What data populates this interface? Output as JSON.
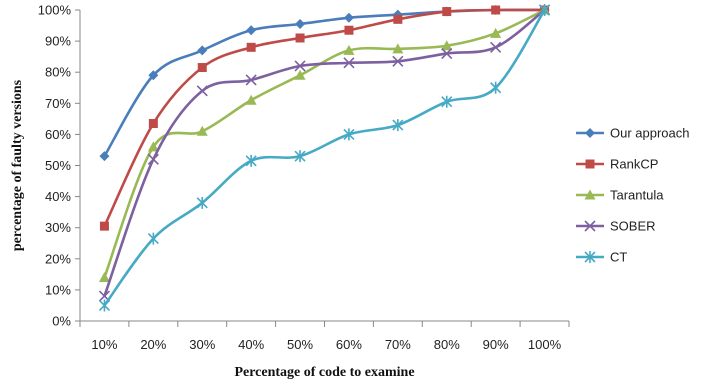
{
  "chart_data": {
    "type": "line",
    "title": "",
    "xlabel": "Percentage of code to examine",
    "ylabel": "percentage of faulty versions",
    "categories": [
      "10%",
      "20%",
      "30%",
      "40%",
      "50%",
      "60%",
      "70%",
      "80%",
      "90%",
      "100%"
    ],
    "y_ticks": [
      "0%",
      "10%",
      "20%",
      "30%",
      "40%",
      "50%",
      "60%",
      "70%",
      "80%",
      "90%",
      "100%"
    ],
    "ylim": [
      0,
      100
    ],
    "grid": false,
    "legend_position": "right",
    "series": [
      {
        "name": "Our approach",
        "color": "#4A7EBB",
        "marker": "diamond",
        "values": [
          53,
          79,
          87,
          93.5,
          95.5,
          97.5,
          98.5,
          99.5,
          100,
          100
        ]
      },
      {
        "name": "RankCP",
        "color": "#BE4B48",
        "marker": "square",
        "values": [
          30.5,
          63.5,
          81.5,
          88,
          91,
          93.5,
          97,
          99.5,
          100,
          100
        ]
      },
      {
        "name": "Tarantula",
        "color": "#98B954",
        "marker": "triangle",
        "values": [
          14,
          56,
          61,
          71,
          79,
          87,
          87.5,
          88.5,
          92.5,
          100
        ]
      },
      {
        "name": "SOBER",
        "color": "#7D60A0",
        "marker": "x",
        "values": [
          8,
          52,
          74,
          77.5,
          82,
          83,
          83.5,
          86,
          88,
          100
        ]
      },
      {
        "name": "CT",
        "color": "#46AAC5",
        "marker": "star",
        "values": [
          5,
          26.5,
          38,
          51.5,
          53,
          60,
          63,
          70.5,
          75,
          100
        ]
      }
    ]
  }
}
